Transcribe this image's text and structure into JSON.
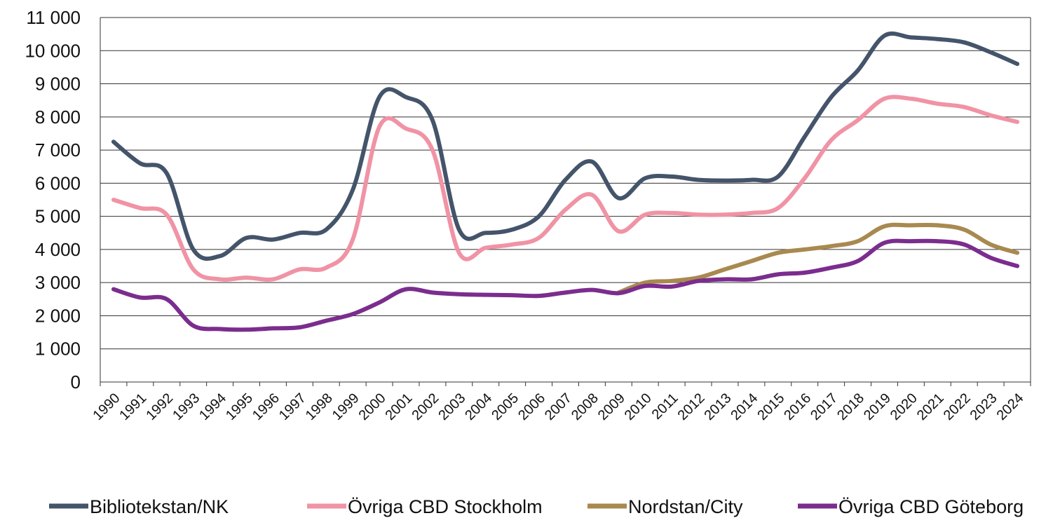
{
  "chart_data": {
    "type": "line",
    "categories": [
      "1990",
      "1991",
      "1992",
      "1993",
      "1994",
      "1995",
      "1996",
      "1997",
      "1998",
      "1999",
      "2000",
      "2001",
      "2002",
      "2003",
      "2004",
      "2005",
      "2006",
      "2007",
      "2008",
      "2009",
      "2010",
      "2011",
      "2012",
      "2013",
      "2014",
      "2015",
      "2016",
      "2017",
      "2018",
      "2019",
      "2020",
      "2021",
      "2022",
      "2023",
      "2024"
    ],
    "series": [
      {
        "name": "Bibliotekstan/NK",
        "color": "#44546a",
        "values": [
          7250,
          6600,
          6300,
          4000,
          3800,
          4350,
          4300,
          4500,
          4600,
          5800,
          8600,
          8600,
          7900,
          4600,
          4500,
          4600,
          5000,
          6100,
          6650,
          5550,
          6150,
          6200,
          6100,
          6080,
          6100,
          6200,
          7400,
          8600,
          9400,
          10450,
          10400,
          10350,
          10250,
          9950,
          9600
        ]
      },
      {
        "name": "Övriga CBD Stockholm",
        "color": "#f093a5",
        "values": [
          5500,
          5250,
          5050,
          3400,
          3100,
          3150,
          3100,
          3400,
          3450,
          4300,
          7700,
          7650,
          7000,
          3900,
          4050,
          4150,
          4350,
          5200,
          5650,
          4550,
          5050,
          5100,
          5050,
          5050,
          5100,
          5250,
          6150,
          7300,
          7900,
          8550,
          8550,
          8400,
          8300,
          8050,
          7850
        ]
      },
      {
        "name": "Nordstan/City",
        "color": "#a8894f",
        "values": [
          null,
          null,
          null,
          null,
          null,
          null,
          null,
          null,
          null,
          null,
          null,
          null,
          null,
          null,
          null,
          null,
          null,
          null,
          null,
          2700,
          3000,
          3050,
          3150,
          3400,
          3650,
          3900,
          4000,
          4100,
          4250,
          4700,
          4730,
          4730,
          4600,
          4150,
          3900
        ]
      },
      {
        "name": "Övriga CBD Göteborg",
        "color": "#7b2d8e",
        "values": [
          2800,
          2550,
          2500,
          1700,
          1600,
          1580,
          1620,
          1650,
          1850,
          2050,
          2400,
          2800,
          2700,
          2650,
          2630,
          2620,
          2600,
          2700,
          2780,
          2680,
          2900,
          2880,
          3050,
          3100,
          3100,
          3250,
          3300,
          3450,
          3650,
          4200,
          4250,
          4250,
          4150,
          3750,
          3500
        ]
      }
    ],
    "ylim": [
      0,
      11000
    ],
    "yticks": [
      0,
      {
        "value": 1000,
        "label": "1 000"
      },
      {
        "value": 2000,
        "label": "2 000"
      },
      {
        "value": 3000,
        "label": "3 000"
      },
      {
        "value": 4000,
        "label": "4 000"
      },
      {
        "value": 5000,
        "label": "5 000"
      },
      {
        "value": 6000,
        "label": "6 000"
      },
      {
        "value": 7000,
        "label": "7 000"
      },
      {
        "value": 8000,
        "label": "8 000"
      },
      {
        "value": 9000,
        "label": "9 000"
      },
      {
        "value": 10000,
        "label": "10 000"
      },
      {
        "value": 11000,
        "label": "11 000"
      }
    ],
    "grid": true
  }
}
